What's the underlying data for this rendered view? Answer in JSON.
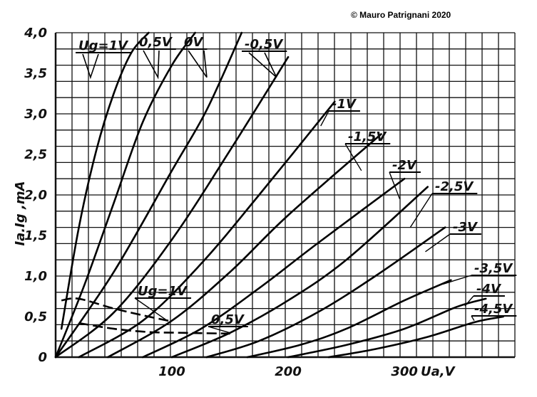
{
  "copyright": "© Mauro Patrignani 2020",
  "chart_data": {
    "type": "line",
    "title": "",
    "xlabel": "Uа,V",
    "ylabel": "Iа.Ig ,mA",
    "xlim": [
      0,
      395
    ],
    "ylim": [
      0,
      4.0
    ],
    "grid": true,
    "x_ticks": [
      100,
      200,
      300
    ],
    "x_tick_labels": [
      "100",
      "200",
      "300"
    ],
    "y_ticks": [
      0,
      0.5,
      1.0,
      1.5,
      2.0,
      2.5,
      3.0,
      3.5,
      4.0
    ],
    "y_tick_labels": [
      "0",
      "0,5",
      "1,0",
      "1,5",
      "2,0",
      "2,5",
      "3,0",
      "3,5",
      "4,0"
    ],
    "anode_series": [
      {
        "name": "Ug=1V",
        "x": [
          5,
          20,
          35,
          50,
          65,
          80
        ],
        "y": [
          0.35,
          1.6,
          2.55,
          3.25,
          3.75,
          4.0
        ]
      },
      {
        "name": "0,5V",
        "x": [
          0,
          25,
          50,
          75,
          100,
          120
        ],
        "y": [
          0.0,
          0.9,
          1.9,
          2.9,
          3.6,
          4.0
        ]
      },
      {
        "name": "0V",
        "x": [
          0,
          50,
          100,
          130,
          160
        ],
        "y": [
          0.0,
          1.05,
          2.3,
          3.05,
          4.0
        ]
      },
      {
        "name": "-0,5V",
        "x": [
          0,
          50,
          100,
          150,
          200
        ],
        "y": [
          0.0,
          0.55,
          1.45,
          2.55,
          3.7
        ]
      },
      {
        "name": "-1V",
        "x": [
          20,
          75,
          125,
          175,
          240
        ],
        "y": [
          0.0,
          0.45,
          1.15,
          2.0,
          3.15
        ]
      },
      {
        "name": "-1,5V",
        "x": [
          45,
          100,
          150,
          200,
          280
        ],
        "y": [
          0.0,
          0.45,
          1.05,
          1.75,
          2.75
        ]
      },
      {
        "name": "-2V",
        "x": [
          75,
          125,
          175,
          225,
          300
        ],
        "y": [
          0.0,
          0.35,
          0.85,
          1.4,
          2.2
        ]
      },
      {
        "name": "-2,5V",
        "x": [
          100,
          150,
          200,
          250,
          320
        ],
        "y": [
          0.0,
          0.3,
          0.7,
          1.2,
          2.1
        ]
      },
      {
        "name": "-3V",
        "x": [
          130,
          175,
          225,
          275,
          335
        ],
        "y": [
          0.0,
          0.2,
          0.55,
          1.0,
          1.6
        ]
      },
      {
        "name": "-3,5V",
        "x": [
          165,
          210,
          250,
          300,
          340
        ],
        "y": [
          0.0,
          0.15,
          0.35,
          0.7,
          0.95
        ]
      },
      {
        "name": "-4V",
        "x": [
          200,
          250,
          300,
          345,
          370
        ],
        "y": [
          0.0,
          0.15,
          0.35,
          0.62,
          0.72
        ]
      },
      {
        "name": "-4,5V",
        "x": [
          235,
          275,
          320,
          360,
          385
        ],
        "y": [
          0.0,
          0.1,
          0.25,
          0.43,
          0.5
        ]
      }
    ],
    "grid_current_series": [
      {
        "name": "Ug=1V",
        "x": [
          5,
          20,
          50,
          80,
          100
        ],
        "y": [
          0.7,
          0.72,
          0.6,
          0.5,
          0.44
        ]
      },
      {
        "name": "0,5V",
        "x": [
          20,
          50,
          80,
          110,
          150
        ],
        "y": [
          0.42,
          0.35,
          0.31,
          0.3,
          0.29
        ]
      }
    ]
  }
}
